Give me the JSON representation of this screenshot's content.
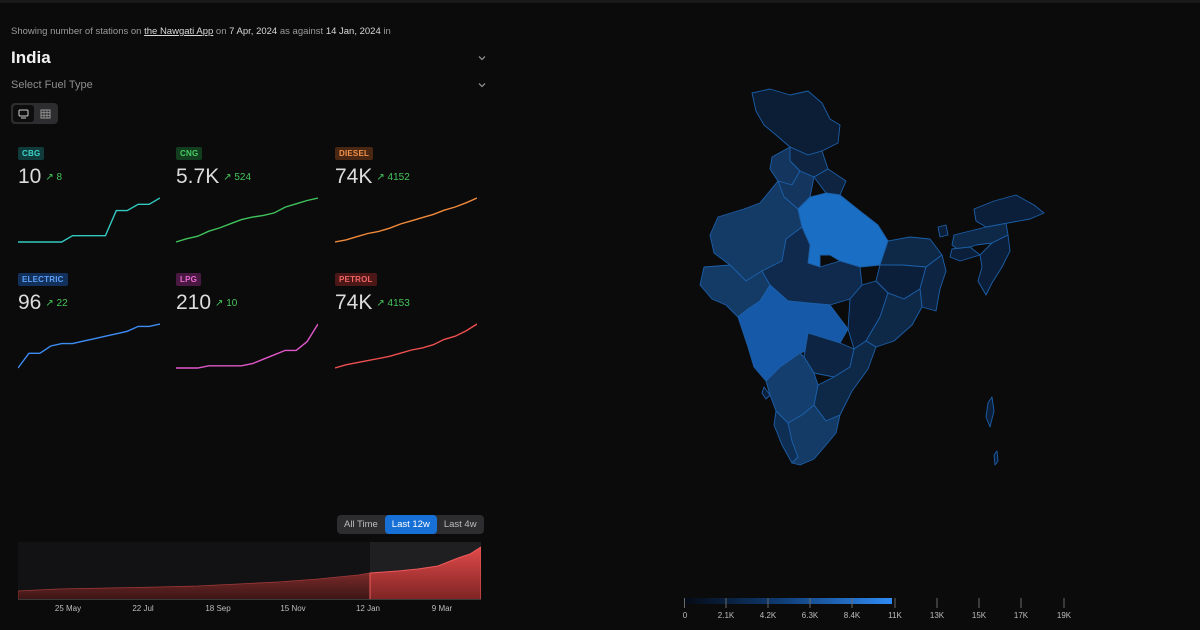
{
  "header": {
    "prefix": "Showing number of stations on",
    "app_link": "the Nawgati App",
    "on": "on",
    "current_date": "7 Apr, 2024",
    "as_against": "as against",
    "compare_date": "14 Jan, 2024",
    "suffix": "in"
  },
  "region": "India",
  "fuel_select_placeholder": "Select Fuel Type",
  "cards": [
    {
      "label": "CBG",
      "value": "10",
      "delta": "8",
      "color": "#33c9c0",
      "badge_bg": "#0f3c3a",
      "badge_fg": "#3fd3c8",
      "trend": [
        0,
        0,
        0,
        0,
        0,
        1,
        1,
        1,
        1,
        5,
        5,
        6,
        6,
        7
      ]
    },
    {
      "label": "CNG",
      "value": "5.7K",
      "delta": "524",
      "color": "#3fc25a",
      "badge_bg": "#123d1e",
      "badge_fg": "#48cc62",
      "trend": [
        0,
        40,
        70,
        130,
        170,
        220,
        270,
        300,
        320,
        350,
        420,
        460,
        500,
        530
      ]
    },
    {
      "label": "DIESEL",
      "value": "74K",
      "delta": "4152",
      "color": "#f28a3a",
      "badge_bg": "#4a2712",
      "badge_fg": "#f3924a",
      "trend": [
        0,
        200,
        500,
        800,
        1000,
        1300,
        1700,
        2000,
        2300,
        2600,
        3000,
        3300,
        3700,
        4150
      ]
    },
    {
      "label": "ELECTRIC",
      "value": "96",
      "delta": "22",
      "color": "#3d8df5",
      "badge_bg": "#13305a",
      "badge_fg": "#5aa0f8",
      "trend": [
        0,
        6,
        6,
        9,
        10,
        10,
        11,
        12,
        13,
        14,
        15,
        17,
        17,
        18
      ]
    },
    {
      "label": "LPG",
      "value": "210",
      "delta": "10",
      "color": "#e157c8",
      "badge_bg": "#4a1942",
      "badge_fg": "#e869d0",
      "trend": [
        0,
        0,
        0,
        0.5,
        0.5,
        0.5,
        0.5,
        1,
        2,
        3,
        4,
        4,
        6,
        10
      ]
    },
    {
      "label": "PETROL",
      "value": "74K",
      "delta": "4153",
      "color": "#ee4f4f",
      "badge_bg": "#4c1717",
      "badge_fg": "#f26464",
      "trend": [
        0,
        300,
        500,
        700,
        900,
        1100,
        1400,
        1700,
        1900,
        2200,
        2700,
        3000,
        3500,
        4150
      ]
    }
  ],
  "range_buttons": [
    "All Time",
    "Last 12w",
    "Last 4w"
  ],
  "range_selected": "Last 12w",
  "area_chart_ticks": [
    "25 May",
    "22 Jul",
    "18 Sep",
    "15 Nov",
    "12 Jan",
    "9 Mar"
  ],
  "legend_ticks": [
    "0",
    "2.1K",
    "4.2K",
    "6.3K",
    "8.4K",
    "11K",
    "13K",
    "15K",
    "17K",
    "19K"
  ],
  "colors": {
    "accent": "#1670d6",
    "positive": "#45c45a"
  }
}
